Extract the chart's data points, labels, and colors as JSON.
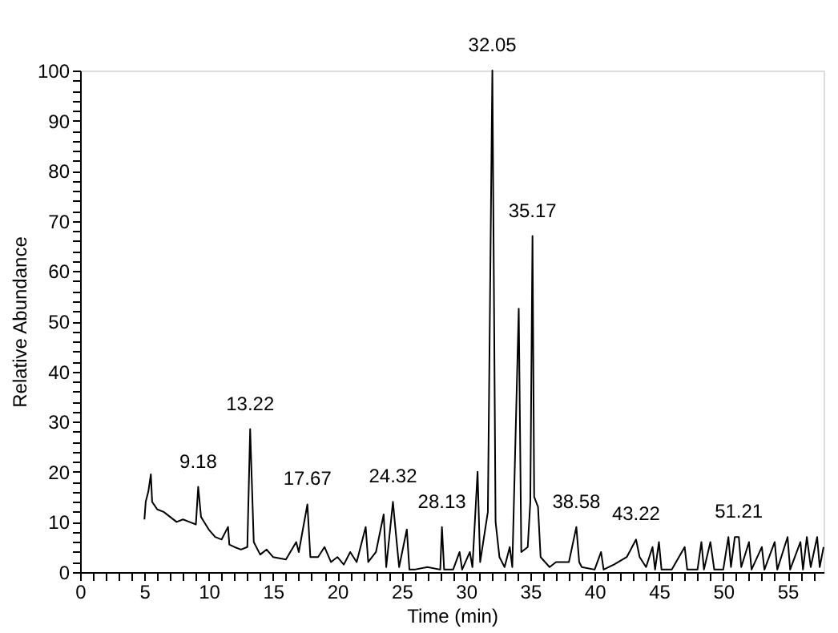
{
  "chart_data": {
    "type": "line",
    "xlabel": "Time (min)",
    "ylabel": "Relative Abundance",
    "x": [
      5.0,
      5.1,
      5.3,
      5.5,
      5.6,
      6,
      6.5,
      7,
      7.5,
      8,
      8.5,
      9,
      9.18,
      9.4,
      10,
      10.5,
      11,
      11.5,
      11.6,
      12,
      12.5,
      13,
      13.22,
      13.5,
      14,
      14.5,
      15,
      16,
      16.8,
      17,
      17.67,
      17.9,
      18.5,
      19,
      19.5,
      20,
      20.5,
      21,
      21.5,
      22.2,
      22.4,
      23,
      23.6,
      23.8,
      24.32,
      24.5,
      24.8,
      25.4,
      25.6,
      26,
      27,
      28,
      28.13,
      28.3,
      29,
      29.5,
      29.7,
      30.3,
      30.5,
      30.9,
      31.1,
      31.7,
      32.05,
      32.3,
      32.6,
      33,
      33.4,
      33.6,
      34.1,
      34.3,
      34.8,
      35.0,
      35.17,
      35.3,
      35.6,
      35.8,
      36.5,
      37,
      38,
      38.58,
      38.8,
      39,
      40,
      40.5,
      40.7,
      41.5,
      42.5,
      43.22,
      43.5,
      44,
      44.5,
      44.7,
      45,
      45.2,
      46,
      47,
      47.2,
      48,
      48.3,
      48.5,
      49,
      49.3,
      50,
      50.4,
      50.6,
      50.9,
      51.21,
      51.4,
      52,
      52.2,
      53,
      53.2,
      54,
      54.2,
      55,
      55.2,
      56,
      56.2,
      56.5,
      56.8,
      57.3,
      57.5,
      57.8
    ],
    "series": [
      {
        "color": "#000000",
        "values": [
          10.5,
          14,
          16,
          19.5,
          14,
          12.5,
          12,
          11,
          10,
          10.5,
          10,
          9.5,
          17,
          11,
          8.5,
          7,
          6.5,
          9,
          5.5,
          5,
          4.5,
          5,
          28.5,
          6,
          3.5,
          4.5,
          3,
          2.5,
          6,
          4,
          13.5,
          3,
          3,
          5,
          2,
          3,
          1.5,
          4,
          2,
          9,
          2,
          4,
          11.5,
          1,
          14,
          9,
          1,
          8.5,
          0.5,
          0.5,
          1,
          0.5,
          9,
          0.5,
          0.5,
          4,
          0.5,
          4,
          1,
          20,
          2,
          12,
          100,
          10,
          3,
          1,
          5,
          1,
          52.5,
          4,
          5,
          14,
          67,
          15,
          13,
          3,
          1,
          2,
          2,
          9,
          2,
          1,
          0.5,
          4,
          0.5,
          1.5,
          3,
          6.5,
          3,
          1,
          5,
          0.5,
          6,
          0.5,
          0.5,
          5,
          0.5,
          0.5,
          6,
          0.5,
          6,
          0.5,
          0.5,
          7,
          1,
          7,
          7,
          1,
          6,
          0.5,
          5,
          0.5,
          6,
          0.5,
          7,
          0.5,
          6,
          0.5,
          7,
          1,
          7,
          1,
          5
        ]
      }
    ],
    "xlim": [
      0,
      57.8
    ],
    "xticks": [
      0,
      {
        "value": 1,
        "label": null
      },
      {
        "value": 2,
        "label": null
      },
      {
        "value": 3,
        "label": null
      },
      {
        "value": 4,
        "label": null
      },
      5,
      {
        "value": 6,
        "label": null
      },
      {
        "value": 7,
        "label": null
      },
      {
        "value": 8,
        "label": null
      },
      {
        "value": 9,
        "label": null
      },
      10,
      {
        "value": 11,
        "label": null
      },
      {
        "value": 12,
        "label": null
      },
      {
        "value": 13,
        "label": null
      },
      {
        "value": 14,
        "label": null
      },
      15,
      {
        "value": 16,
        "label": null
      },
      {
        "value": 17,
        "label": null
      },
      {
        "value": 18,
        "label": null
      },
      {
        "value": 19,
        "label": null
      },
      20,
      {
        "value": 21,
        "label": null
      },
      {
        "value": 22,
        "label": null
      },
      {
        "value": 23,
        "label": null
      },
      {
        "value": 24,
        "label": null
      },
      25,
      {
        "value": 26,
        "label": null
      },
      {
        "value": 27,
        "label": null
      },
      {
        "value": 28,
        "label": null
      },
      {
        "value": 29,
        "label": null
      },
      30,
      {
        "value": 31,
        "label": null
      },
      {
        "value": 32,
        "label": null
      },
      {
        "value": 33,
        "label": null
      },
      {
        "value": 34,
        "label": null
      },
      35,
      {
        "value": 36,
        "label": null
      },
      {
        "value": 37,
        "label": null
      },
      {
        "value": 38,
        "label": null
      },
      {
        "value": 39,
        "label": null
      },
      40,
      {
        "value": 41,
        "label": null
      },
      {
        "value": 42,
        "label": null
      },
      {
        "value": 43,
        "label": null
      },
      {
        "value": 44,
        "label": null
      },
      45,
      {
        "value": 46,
        "label": null
      },
      {
        "value": 47,
        "label": null
      },
      {
        "value": 48,
        "label": null
      },
      {
        "value": 49,
        "label": null
      },
      50,
      {
        "value": 51,
        "label": null
      },
      {
        "value": 52,
        "label": null
      },
      {
        "value": 53,
        "label": null
      },
      {
        "value": 54,
        "label": null
      },
      55,
      {
        "value": 56,
        "label": null
      },
      {
        "value": 57,
        "label": null
      }
    ],
    "ylim": [
      0,
      100
    ],
    "yticks": [
      0,
      {
        "value": 2,
        "label": null
      },
      {
        "value": 4,
        "label": null
      },
      {
        "value": 6,
        "label": null
      },
      {
        "value": 8,
        "label": null
      },
      10,
      {
        "value": 12,
        "label": null
      },
      {
        "value": 14,
        "label": null
      },
      {
        "value": 16,
        "label": null
      },
      {
        "value": 18,
        "label": null
      },
      20,
      {
        "value": 22,
        "label": null
      },
      {
        "value": 24,
        "label": null
      },
      {
        "value": 26,
        "label": null
      },
      {
        "value": 28,
        "label": null
      },
      30,
      {
        "value": 32,
        "label": null
      },
      {
        "value": 34,
        "label": null
      },
      {
        "value": 36,
        "label": null
      },
      {
        "value": 38,
        "label": null
      },
      40,
      {
        "value": 42,
        "label": null
      },
      {
        "value": 44,
        "label": null
      },
      {
        "value": 46,
        "label": null
      },
      {
        "value": 48,
        "label": null
      },
      50,
      {
        "value": 52,
        "label": null
      },
      {
        "value": 54,
        "label": null
      },
      {
        "value": 56,
        "label": null
      },
      {
        "value": 58,
        "label": null
      },
      60,
      {
        "value": 62,
        "label": null
      },
      {
        "value": 64,
        "label": null
      },
      {
        "value": 66,
        "label": null
      },
      {
        "value": 68,
        "label": null
      },
      70,
      {
        "value": 72,
        "label": null
      },
      {
        "value": 74,
        "label": null
      },
      {
        "value": 76,
        "label": null
      },
      {
        "value": 78,
        "label": null
      },
      80,
      {
        "value": 82,
        "label": null
      },
      {
        "value": 84,
        "label": null
      },
      {
        "value": 86,
        "label": null
      },
      {
        "value": 88,
        "label": null
      },
      90,
      {
        "value": 92,
        "label": null
      },
      {
        "value": 94,
        "label": null
      },
      {
        "value": 96,
        "label": null
      },
      {
        "value": 98,
        "label": null
      },
      100
    ],
    "annotations": [
      {
        "text": "9.18",
        "x": 9.18,
        "y": 17
      },
      {
        "text": "13.22",
        "x": 13.22,
        "y": 28.5
      },
      {
        "text": "17.67",
        "x": 17.67,
        "y": 13.5
      },
      {
        "text": "24.32",
        "x": 24.32,
        "y": 14
      },
      {
        "text": "28.13",
        "x": 28.13,
        "y": 9
      },
      {
        "text": "32.05",
        "x": 32.05,
        "y": 100
      },
      {
        "text": "35.17",
        "x": 35.17,
        "y": 67
      },
      {
        "text": "38.58",
        "x": 38.58,
        "y": 9
      },
      {
        "text": "43.22",
        "x": 43.22,
        "y": 6.5
      },
      {
        "text": "51.21",
        "x": 51.21,
        "y": 7
      }
    ],
    "grid": false,
    "marker": "none",
    "line_style": "solid"
  }
}
